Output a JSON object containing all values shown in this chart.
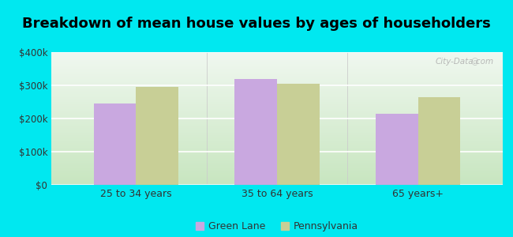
{
  "title": "Breakdown of mean house values by ages of householders",
  "categories": [
    "25 to 34 years",
    "35 to 64 years",
    "65 years+"
  ],
  "green_lane_values": [
    245000,
    320000,
    215000
  ],
  "pennsylvania_values": [
    295000,
    305000,
    265000
  ],
  "green_lane_color": "#c9a8e0",
  "pennsylvania_color": "#c8cf96",
  "background_outer": "#00e8f0",
  "background_inner_bottom": "#c8e6c0",
  "background_inner_top": "#f0f8f0",
  "ylim": [
    0,
    400000
  ],
  "yticks": [
    0,
    100000,
    200000,
    300000,
    400000
  ],
  "ytick_labels": [
    "$0",
    "$100k",
    "$200k",
    "$300k",
    "$400k"
  ],
  "bar_width": 0.3,
  "legend_labels": [
    "Green Lane",
    "Pennsylvania"
  ],
  "title_fontsize": 13,
  "watermark": "City-Data.com"
}
